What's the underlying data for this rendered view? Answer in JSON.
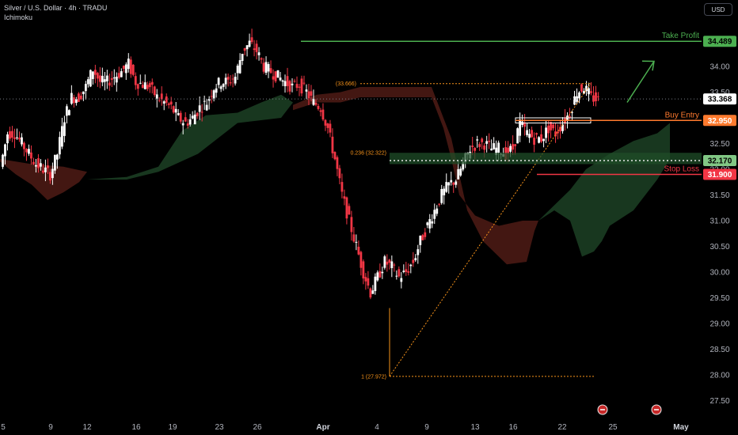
{
  "header": {
    "title": "Silver / U.S. Dollar · 4h · TRADU",
    "indicator": "Ichimoku"
  },
  "currency": "USD",
  "colors": {
    "background": "#000000",
    "candle_up": "#ffffff",
    "candle_down": "#f23645",
    "cloud_bull": "#1b3d22",
    "cloud_bear": "#4a1a14",
    "take_profit": "#4caf50",
    "buy_entry": "#ff7a2e",
    "stop_loss": "#f23645",
    "fib": "#f7931a",
    "support": "#66bb6a",
    "current_price_bg": "#ffffff"
  },
  "chart_data": {
    "type": "candlestick",
    "title": "Silver / U.S. Dollar · 4h · TRADU",
    "ylim": [
      27.4,
      35.2
    ],
    "y_ticks": [
      27.5,
      28.0,
      28.5,
      29.0,
      29.5,
      30.0,
      30.5,
      31.0,
      31.5,
      32.0,
      32.5,
      33.0,
      33.5,
      34.0
    ],
    "x_ticks": [
      {
        "label": "5"
      },
      {
        "label": "9"
      },
      {
        "label": "12"
      },
      {
        "label": "16"
      },
      {
        "label": "19"
      },
      {
        "label": "23"
      },
      {
        "label": "26"
      },
      {
        "label": "Apr",
        "bold": true
      },
      {
        "label": "4"
      },
      {
        "label": "9"
      },
      {
        "label": "13"
      },
      {
        "label": "16"
      },
      {
        "label": "22"
      },
      {
        "label": "25"
      },
      {
        "label": "May",
        "bold": true
      }
    ],
    "price_path": [
      32.05,
      32.7,
      32.7,
      32.5,
      32.3,
      32.1,
      32.0,
      31.9,
      32.3,
      33.0,
      33.4,
      33.4,
      33.6,
      33.95,
      33.7,
      33.7,
      33.8,
      33.9,
      34.05,
      33.7,
      33.65,
      33.6,
      33.4,
      33.3,
      33.2,
      33.0,
      32.9,
      33.0,
      33.2,
      33.3,
      33.6,
      33.7,
      33.7,
      33.8,
      34.3,
      34.45,
      34.3,
      34.0,
      33.9,
      33.8,
      33.7,
      33.6,
      33.65,
      33.5,
      33.3,
      33.2,
      32.8,
      32.2,
      31.5,
      31.0,
      30.5,
      30.0,
      29.6,
      29.9,
      30.2,
      30.1,
      29.9,
      30.0,
      30.2,
      30.6,
      30.9,
      31.2,
      31.5,
      31.7,
      31.8,
      32.1,
      32.4,
      32.5,
      32.5,
      32.4,
      32.4,
      32.3,
      32.4,
      32.9,
      32.7,
      32.6,
      32.6,
      32.8,
      32.7,
      32.9,
      33.1,
      33.5,
      33.6,
      33.4,
      33.35
    ],
    "current_price": 33.368,
    "levels": [
      {
        "name": "Take Profit",
        "price": 34.489,
        "label": "34.489",
        "color": "#4caf50"
      },
      {
        "name": "Buy Entry",
        "price": 32.95,
        "label": "32.950",
        "color": "#ff7a2e"
      },
      {
        "name": "Stop Loss",
        "price": 31.9,
        "label": "31.900",
        "color": "#f23645"
      }
    ],
    "support_zone": {
      "price": 32.17,
      "label": "32.170"
    },
    "fib": [
      {
        "label": "(33.666)",
        "price": 33.666
      },
      {
        "label": "0.236 (32.322)",
        "price": 32.322
      },
      {
        "label": "1 (27.972)",
        "price": 27.972
      }
    ],
    "grid": false,
    "legend": "top-left"
  },
  "current_price_label": "33.368"
}
